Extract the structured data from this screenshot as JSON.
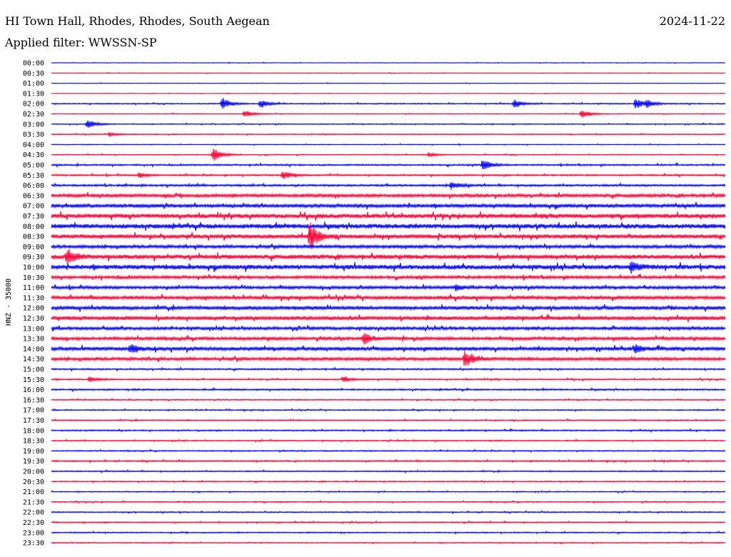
{
  "header": {
    "station": "HI Town Hall, Rhodes, Rhodes, South Aegean",
    "date": "2024-11-22",
    "filter_label": "Applied filter: WWSSN-SP"
  },
  "chart_data": {
    "type": "line",
    "title": "HI Town Hall, Rhodes, Rhodes, South Aegean",
    "ylabel": "HNZ - 35000",
    "xlabel": "",
    "trace_labels": [
      "00:00",
      "00:30",
      "01:00",
      "01:30",
      "02:00",
      "02:30",
      "03:00",
      "03:30",
      "04:00",
      "04:30",
      "05:00",
      "05:30",
      "06:00",
      "06:30",
      "07:00",
      "07:30",
      "08:00",
      "08:30",
      "09:00",
      "09:30",
      "10:00",
      "10:30",
      "11:00",
      "11:30",
      "12:00",
      "12:30",
      "13:00",
      "13:30",
      "14:00",
      "14:30",
      "15:00",
      "15:30",
      "16:00",
      "16:30",
      "17:00",
      "17:30",
      "18:00",
      "18:30",
      "19:00",
      "19:30",
      "20:00",
      "20:30",
      "21:00",
      "21:30",
      "22:00",
      "22:30",
      "23:00",
      "23:30"
    ],
    "trace_colors": [
      "#0000ff",
      "#ff0033"
    ],
    "noise_levels": [
      0.3,
      0.3,
      0.3,
      0.3,
      0.6,
      0.4,
      0.5,
      0.5,
      0.4,
      0.5,
      0.8,
      0.8,
      1.0,
      1.6,
      1.8,
      2.2,
      2.3,
      2.0,
      1.6,
      2.2,
      2.3,
      1.5,
      1.5,
      1.8,
      1.8,
      1.9,
      1.5,
      1.6,
      1.8,
      1.6,
      0.8,
      0.7,
      0.8,
      0.6,
      0.6,
      0.6,
      0.7,
      0.6,
      0.6,
      0.7,
      0.6,
      0.6,
      0.5,
      0.6,
      0.6,
      0.6,
      0.6,
      0.5
    ],
    "events": [
      {
        "trace": 4,
        "minute": 7.6,
        "amplitude": 9
      },
      {
        "trace": 4,
        "minute": 9.3,
        "amplitude": 6
      },
      {
        "trace": 4,
        "minute": 20.6,
        "amplitude": 6
      },
      {
        "trace": 4,
        "minute": 26.0,
        "amplitude": 8
      },
      {
        "trace": 4,
        "minute": 26.5,
        "amplitude": 5
      },
      {
        "trace": 5,
        "minute": 8.6,
        "amplitude": 6
      },
      {
        "trace": 5,
        "minute": 23.6,
        "amplitude": 7
      },
      {
        "trace": 6,
        "minute": 1.6,
        "amplitude": 7
      },
      {
        "trace": 7,
        "minute": 2.6,
        "amplitude": 3
      },
      {
        "trace": 9,
        "minute": 7.2,
        "amplitude": 11
      },
      {
        "trace": 9,
        "minute": 16.8,
        "amplitude": 3
      },
      {
        "trace": 10,
        "minute": 19.2,
        "amplitude": 8
      },
      {
        "trace": 11,
        "minute": 3.9,
        "amplitude": 4
      },
      {
        "trace": 11,
        "minute": 10.3,
        "amplitude": 7
      },
      {
        "trace": 12,
        "minute": 17.8,
        "amplitude": 5
      },
      {
        "trace": 17,
        "minute": 11.5,
        "amplitude": 20
      },
      {
        "trace": 19,
        "minute": 0.7,
        "amplitude": 11
      },
      {
        "trace": 20,
        "minute": 25.8,
        "amplitude": 7
      },
      {
        "trace": 22,
        "minute": 18.0,
        "amplitude": 4
      },
      {
        "trace": 27,
        "minute": 13.9,
        "amplitude": 8
      },
      {
        "trace": 28,
        "minute": 3.5,
        "amplitude": 7
      },
      {
        "trace": 28,
        "minute": 26.0,
        "amplitude": 5
      },
      {
        "trace": 29,
        "minute": 18.4,
        "amplitude": 12
      },
      {
        "trace": 31,
        "minute": 1.7,
        "amplitude": 4
      },
      {
        "trace": 31,
        "minute": 13.0,
        "amplitude": 4
      }
    ]
  }
}
